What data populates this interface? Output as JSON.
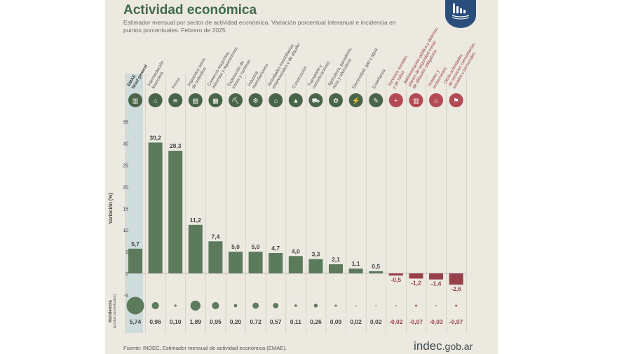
{
  "header": {
    "title": "Actividad económica",
    "subtitle": "Estimador mensual por sector de actividad económica. Variación porcentual interanual e incidencia en puntos porcentuales. Febrero de 2025."
  },
  "footer": {
    "source": "Fuente: INDEC, Estimador mensual de actividad económica (EMAE).",
    "web_main": "indec",
    "web_domain": ".gob.ar"
  },
  "colors": {
    "positive": "#5c7a5c",
    "negative": "#98404a",
    "highlight": "#cfdcdc",
    "title": "#3f6b4b"
  },
  "chart_data": {
    "type": "bar",
    "ylabel": "Variación (%)",
    "incidence_label": "Incidencia",
    "incidence_sublabel": "(puntos porcentuales)",
    "ylim": [
      -7,
      37
    ],
    "yticks": [
      -5,
      0,
      5,
      10,
      15,
      20,
      25,
      30,
      35
    ],
    "categories": [
      {
        "lines": [
          "EMAE",
          "Nivel general"
        ],
        "icon": "emae-icon"
      },
      {
        "lines": [
          "Intermediación",
          "financiera"
        ],
        "icon": "bank-icon"
      },
      {
        "lines": [
          "Pesca"
        ],
        "icon": "fishing-icon"
      },
      {
        "lines": [
          "Impuestos netos",
          "de subsidios"
        ],
        "icon": "taxes-icon"
      },
      {
        "lines": [
          "Comercio mayorista,",
          "minorista y reparaciones"
        ],
        "icon": "commerce-icon"
      },
      {
        "lines": [
          "Explotación de",
          "minas y canteras"
        ],
        "icon": "mining-icon"
      },
      {
        "lines": [
          "Industria",
          "manufacturera"
        ],
        "icon": "industry-icon"
      },
      {
        "lines": [
          "Actividades inmobiliarias,",
          "empresariales y de alquiler"
        ],
        "icon": "real-estate-icon"
      },
      {
        "lines": [
          "Construcción"
        ],
        "icon": "construction-icon"
      },
      {
        "lines": [
          "Transporte y",
          "comunicaciones"
        ],
        "icon": "transport-icon"
      },
      {
        "lines": [
          "Agricultura, ganadería,",
          "caza y silvicultura"
        ],
        "icon": "agriculture-icon"
      },
      {
        "lines": [
          "Electricidad, gas y agua"
        ],
        "icon": "utilities-icon"
      },
      {
        "lines": [
          "Enseñanza"
        ],
        "icon": "education-icon"
      },
      {
        "lines": [
          "Servicios sociales",
          "y de salud"
        ],
        "icon": "health-icon"
      },
      {
        "lines": [
          "Administración pública y defensa;",
          "planes de seguridad social",
          "de afiliación obligatoria"
        ],
        "icon": "government-icon"
      },
      {
        "lines": [
          "Hoteles y",
          "restaurantes"
        ],
        "icon": "hotel-icon"
      },
      {
        "lines": [
          "Otras actividades",
          "de servicios comunitarias,",
          "sociales y personales"
        ],
        "icon": "services-icon"
      }
    ],
    "values": [
      5.7,
      30.2,
      28.3,
      11.2,
      7.4,
      5.0,
      5.0,
      4.7,
      4.0,
      3.3,
      2.1,
      1.1,
      0.5,
      -0.5,
      -1.2,
      -1.4,
      -2.6
    ],
    "value_labels": [
      "5,7",
      "30,2",
      "28,3",
      "11,2",
      "7,4",
      "5,0",
      "5,0",
      "4,7",
      "4,0",
      "3,3",
      "2,1",
      "1,1",
      "0,5",
      "-0,5",
      "-1,2",
      "-1,4",
      "-2,6"
    ],
    "incidence": [
      5.74,
      0.96,
      0.1,
      1.89,
      0.95,
      0.2,
      0.72,
      0.57,
      0.11,
      0.26,
      0.09,
      0.02,
      0.02,
      -0.02,
      -0.07,
      -0.03,
      -0.07
    ],
    "incidence_labels": [
      "5,74",
      "0,96",
      "0,10",
      "1,89",
      "0,95",
      "0,20",
      "0,72",
      "0,57",
      "0,11",
      "0,26",
      "0,09",
      "0,02",
      "0,02",
      "-0,02",
      "-0,07",
      "-0,03",
      "-0,07"
    ]
  }
}
